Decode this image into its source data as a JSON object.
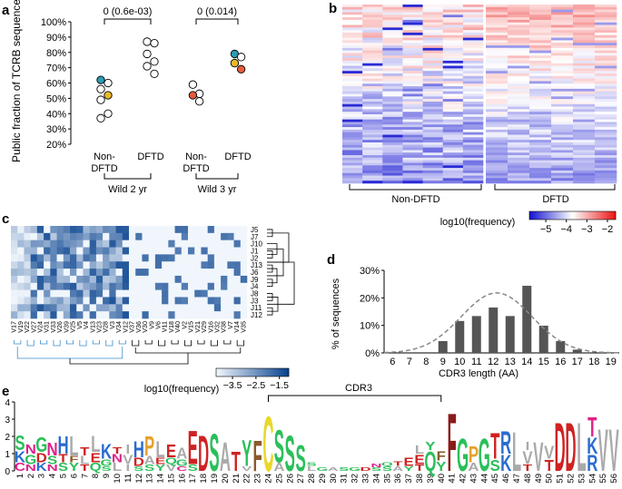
{
  "panels": {
    "a": "a",
    "b": "b",
    "c": "c",
    "d": "d",
    "e": "e"
  },
  "chart_data": [
    {
      "id": "a",
      "type": "scatter",
      "ylabel": "Public fraction of TCRB sequences",
      "ylim": [
        20,
        100
      ],
      "yticks": [
        "20%",
        "30%",
        "40%",
        "50%",
        "60%",
        "70%",
        "80%",
        "90%",
        "100%"
      ],
      "ytick_values": [
        20,
        30,
        40,
        50,
        60,
        70,
        80,
        90,
        100
      ],
      "groups": [
        {
          "label_line1": "Non-",
          "label_line2": "DFTD",
          "x": 1,
          "points": [
            {
              "y": 62,
              "color": "#2a9db5"
            },
            {
              "y": 60,
              "color": "#ffffff"
            },
            {
              "y": 56,
              "color": "#ffffff"
            },
            {
              "y": 52,
              "color": "#e8b92a"
            },
            {
              "y": 49,
              "color": "#ffffff"
            },
            {
              "y": 40,
              "color": "#ffffff"
            },
            {
              "y": 37,
              "color": "#ffffff"
            }
          ]
        },
        {
          "label_line1": "DFTD",
          "label_line2": "",
          "x": 2,
          "points": [
            {
              "y": 87,
              "color": "#ffffff"
            },
            {
              "y": 86,
              "color": "#ffffff"
            },
            {
              "y": 79,
              "color": "#ffffff"
            },
            {
              "y": 74,
              "color": "#ffffff"
            },
            {
              "y": 71,
              "color": "#ffffff"
            },
            {
              "y": 66,
              "color": "#ffffff"
            }
          ]
        },
        {
          "label_line1": "Non-",
          "label_line2": "DFTD",
          "x": 3,
          "points": [
            {
              "y": 59,
              "color": "#ffffff"
            },
            {
              "y": 53,
              "color": "#ffffff"
            },
            {
              "y": 52,
              "color": "#e45c3a"
            },
            {
              "y": 48,
              "color": "#ffffff"
            }
          ]
        },
        {
          "label_line1": "DFTD",
          "label_line2": "",
          "x": 4,
          "points": [
            {
              "y": 79,
              "color": "#2a9db5"
            },
            {
              "y": 77,
              "color": "#ffffff"
            },
            {
              "y": 73,
              "color": "#e8b92a"
            },
            {
              "y": 69,
              "color": "#e45c3a"
            }
          ]
        }
      ],
      "brackets": [
        {
          "from": 1,
          "to": 2,
          "text": "0 (0.6e-03)"
        },
        {
          "from": 3,
          "to": 4,
          "text": "0 (0.014)"
        }
      ],
      "cohorts": [
        {
          "from": 1,
          "to": 2,
          "text": "Wild 2 yr"
        },
        {
          "from": 3,
          "to": 4,
          "text": "Wild 3 yr"
        }
      ]
    },
    {
      "id": "b",
      "type": "heatmap",
      "groups": [
        "Non-DFTD",
        "DFTD"
      ],
      "colorbar_label": "log10(frequency)",
      "colorbar_ticks": [
        "−5",
        "−4",
        "−3",
        "−2"
      ],
      "colorbar_values": [
        -5,
        -4,
        -3,
        -2
      ],
      "colorbar_range": [
        -5.8,
        -1.6
      ],
      "non_dftd_columns": 7,
      "dftd_columns": 6,
      "rows": 70
    },
    {
      "id": "c",
      "type": "heatmap",
      "j_labels": [
        "J5",
        "J7",
        "J10",
        "J1",
        "J2",
        "J13",
        "J6",
        "J9",
        "J4",
        "J8",
        "J3",
        "J11",
        "J12"
      ],
      "v_labels": [
        "V17",
        "V19",
        "V22",
        "V27",
        "V24",
        "V31",
        "V33",
        "V26",
        "V39",
        "V25",
        "V5",
        "V4",
        "V13",
        "V23",
        "V28",
        "V3",
        "V34",
        "V12",
        "V37",
        "V36",
        "V30",
        "V9",
        "V6",
        "V11",
        "V18",
        "V40",
        "V2",
        "V15",
        "V21",
        "V29",
        "V16",
        "V32",
        "V38",
        "V7",
        "V14",
        "V35"
      ],
      "colorbar_label": "log10(frequency)",
      "colorbar_ticks": [
        "−3.5",
        "−2.5",
        "−1.5"
      ],
      "colorbar_values": [
        -3.5,
        -2.5,
        -1.5
      ],
      "colorbar_range": [
        -4.2,
        -1.1
      ]
    },
    {
      "id": "d",
      "type": "bar",
      "categories": [
        "6",
        "7",
        "8",
        "9",
        "10",
        "11",
        "12",
        "13",
        "14",
        "15",
        "16",
        "17",
        "18",
        "19"
      ],
      "values": [
        0,
        0,
        0,
        4.3,
        11.6,
        13.4,
        16.5,
        13.4,
        24.4,
        9.9,
        4.3,
        1.2,
        0,
        0
      ],
      "fit_line": "normal",
      "fit_mean": 12.2,
      "fit_sd": 2.1,
      "fit_peak": 21.8,
      "xlabel": "CDR3 length (AA)",
      "ylabel": "% of sequences",
      "ylim": [
        0,
        30
      ],
      "yticks": [
        "0%",
        "10%",
        "20%",
        "30%"
      ],
      "ytick_values": [
        0,
        10,
        20,
        30
      ]
    },
    {
      "id": "e",
      "type": "other",
      "subtype": "sequence logo",
      "cdr3_label": "CDR3",
      "cdr3_range": [
        24,
        40
      ],
      "yticks": [
        "0",
        "1",
        "2",
        "3",
        "4"
      ],
      "ytick_values": [
        0,
        1,
        2,
        3,
        4
      ],
      "ylim": [
        0,
        4
      ],
      "positions": [
        "1",
        "2",
        "3",
        "4",
        "5",
        "6",
        "7",
        "8",
        "9",
        "10",
        "11",
        "12",
        "13",
        "14",
        "15",
        "16",
        "17",
        "18",
        "19",
        "20",
        "21",
        "22",
        "23",
        "24",
        "25",
        "26",
        "27",
        "28",
        "29",
        "30",
        "31",
        "32",
        "33",
        "34",
        "35",
        "36",
        "37",
        "38",
        "39",
        "40",
        "41",
        "42",
        "43",
        "44",
        "45",
        "46",
        "47",
        "48",
        "49",
        "50",
        "51",
        "52",
        "53",
        "54",
        "55",
        "56"
      ],
      "stacks": [
        [
          [
            "C",
            0.5,
            "#e0218a"
          ],
          [
            "K",
            0.7,
            "#2a6ccf"
          ],
          [
            "S",
            0.9,
            "#2bbf5a"
          ]
        ],
        [
          [
            "N",
            0.4,
            "#e0218a"
          ],
          [
            "G",
            0.6,
            "#2bbf5a"
          ],
          [
            "N",
            0.6,
            "#e0218a"
          ]
        ],
        [
          [
            "K",
            0.5,
            "#2a6ccf"
          ],
          [
            "D",
            0.6,
            "#cf2222"
          ],
          [
            "G",
            0.9,
            "#2bbf5a"
          ]
        ],
        [
          [
            "N",
            0.4,
            "#e0218a"
          ],
          [
            "S",
            0.5,
            "#2bbf5a"
          ],
          [
            "N",
            0.8,
            "#e0218a"
          ]
        ],
        [
          [
            "S",
            0.5,
            "#2bbf5a"
          ],
          [
            "T",
            0.5,
            "#cf2222"
          ],
          [
            "H",
            1.1,
            "#2a6ccf"
          ]
        ],
        [
          [
            "Y",
            0.5,
            "#2bbf5a"
          ],
          [
            "F",
            0.4,
            "#8a5a2a"
          ],
          [
            "L",
            1.2,
            "#aaaaaa"
          ]
        ],
        [
          [
            "T",
            0.4,
            "#cf2222"
          ],
          [
            "L",
            0.5,
            "#aaaaaa"
          ],
          [
            "T",
            0.5,
            "#cf2222"
          ]
        ],
        [
          [
            "Q",
            0.5,
            "#2bbf5a"
          ],
          [
            "E",
            0.6,
            "#cf2222"
          ],
          [
            "L",
            1.0,
            "#aaaaaa"
          ]
        ],
        [
          [
            "S",
            0.3,
            "#2bbf5a"
          ],
          [
            "G",
            0.4,
            "#2bbf5a"
          ],
          [
            "K",
            0.9,
            "#2a6ccf"
          ]
        ],
        [
          [
            "L",
            0.5,
            "#aaaaaa"
          ],
          [
            "N",
            0.5,
            "#e0218a"
          ],
          [
            "T",
            0.4,
            "#cf2222"
          ]
        ],
        [
          [
            "I",
            0.4,
            "#aaaaaa"
          ],
          [
            "V",
            0.6,
            "#aaaaaa"
          ],
          [
            "I",
            0.6,
            "#aaaaaa"
          ]
        ],
        [
          [
            "S",
            0.3,
            "#2bbf5a"
          ],
          [
            "D",
            0.5,
            "#cf2222"
          ],
          [
            "H",
            1.0,
            "#2a6ccf"
          ]
        ],
        [
          [
            "S",
            0.4,
            "#2bbf5a"
          ],
          [
            "A",
            0.5,
            "#aaaaaa"
          ],
          [
            "P",
            1.2,
            "#e8a02a"
          ]
        ],
        [
          [
            "Y",
            0.4,
            "#2bbf5a"
          ],
          [
            "E",
            0.4,
            "#cf2222"
          ],
          [
            "L",
            1.0,
            "#aaaaaa"
          ]
        ],
        [
          [
            "V",
            0.4,
            "#aaaaaa"
          ],
          [
            "Q",
            0.4,
            "#2bbf5a"
          ],
          [
            "E",
            0.8,
            "#cf2222"
          ]
        ],
        [
          [
            "C",
            0.3,
            "#e0218a"
          ],
          [
            "G",
            0.4,
            "#2bbf5a"
          ],
          [
            "A",
            0.7,
            "#aaaaaa"
          ]
        ],
        [
          [
            "S",
            0.4,
            "#2bbf5a"
          ],
          [
            "E",
            2.1,
            "#cf2222"
          ]
        ],
        [
          [
            "D",
            2.2,
            "#cf2222"
          ]
        ],
        [
          [
            "S",
            2.3,
            "#2bbf5a"
          ]
        ],
        [
          [
            "A",
            1.8,
            "#aaaaaa"
          ]
        ],
        [
          [
            "T",
            1.2,
            "#cf2222"
          ]
        ],
        [
          [
            "V",
            0.3,
            "#aaaaaa"
          ],
          [
            "Y",
            1.6,
            "#2bbf5a"
          ]
        ],
        [
          [
            "F",
            1.9,
            "#8a5a2a"
          ]
        ],
        [
          [
            "C",
            3.4,
            "#e8d82a"
          ]
        ],
        [
          [
            "A",
            0.5,
            "#aaaaaa"
          ],
          [
            "S",
            2.0,
            "#2bbf5a"
          ]
        ],
        [
          [
            "S",
            2.2,
            "#2bbf5a"
          ]
        ],
        [
          [
            "S",
            1.6,
            "#2bbf5a"
          ]
        ],
        [
          [
            "L",
            0.3,
            "#aaaaaa"
          ],
          [
            "S",
            0.2,
            "#2bbf5a"
          ]
        ],
        [
          [
            "G",
            0.2,
            "#2bbf5a"
          ]
        ],
        [
          [
            "A",
            0.2,
            "#aaaaaa"
          ]
        ],
        [
          [
            "S",
            0.2,
            "#2bbf5a"
          ]
        ],
        [
          [
            "G",
            0.2,
            "#2bbf5a"
          ]
        ],
        [
          [
            "D",
            0.2,
            "#cf2222"
          ]
        ],
        [
          [
            "S",
            0.2,
            "#2bbf5a"
          ],
          [
            "N",
            0.2,
            "#e0218a"
          ]
        ],
        [
          [
            "S",
            0.3,
            "#2bbf5a"
          ],
          [
            "Q",
            0.2,
            "#2bbf5a"
          ]
        ],
        [
          [
            "A",
            0.3,
            "#aaaaaa"
          ],
          [
            "T",
            0.3,
            "#cf2222"
          ]
        ],
        [
          [
            "Y",
            0.3,
            "#2bbf5a"
          ],
          [
            "E",
            0.5,
            "#cf2222"
          ]
        ],
        [
          [
            "T",
            0.4,
            "#cf2222"
          ],
          [
            "E",
            0.6,
            "#cf2222"
          ],
          [
            "L",
            0.5,
            "#aaaaaa"
          ]
        ],
        [
          [
            "Q",
            1.2,
            "#2bbf5a"
          ],
          [
            "Y",
            0.5,
            "#2bbf5a"
          ]
        ],
        [
          [
            "Y",
            0.6,
            "#2bbf5a"
          ],
          [
            "F",
            0.6,
            "#8a5a2a"
          ]
        ],
        [
          [
            "F",
            3.6,
            "#8a1a1a"
          ]
        ],
        [
          [
            "G",
            2.0,
            "#2bbf5a"
          ]
        ],
        [
          [
            "A",
            0.5,
            "#aaaaaa"
          ],
          [
            "P",
            1.0,
            "#e8a02a"
          ]
        ],
        [
          [
            "G",
            2.0,
            "#2bbf5a"
          ]
        ],
        [
          [
            "S",
            0.7,
            "#2bbf5a"
          ],
          [
            "T",
            1.6,
            "#cf2222"
          ]
        ],
        [
          [
            "K",
            1.0,
            "#2a6ccf"
          ],
          [
            "R",
            1.4,
            "#2a6ccf"
          ]
        ],
        [
          [
            "L",
            2.4,
            "#aaaaaa"
          ]
        ],
        [
          [
            "T",
            0.4,
            "#cf2222"
          ],
          [
            "V",
            0.8,
            "#aaaaaa"
          ],
          [
            "I",
            0.5,
            "#aaaaaa"
          ]
        ],
        [
          [
            "V",
            1.8,
            "#aaaaaa"
          ]
        ],
        [
          [
            "T",
            0.7,
            "#cf2222"
          ],
          [
            "V",
            0.8,
            "#aaaaaa"
          ]
        ],
        [
          [
            "D",
            3.0,
            "#cf2222"
          ]
        ],
        [
          [
            "D",
            3.0,
            "#cf2222"
          ]
        ],
        [
          [
            "L",
            3.0,
            "#aaaaaa"
          ]
        ],
        [
          [
            "R",
            1.0,
            "#2a6ccf"
          ],
          [
            "K",
            1.0,
            "#2a6ccf"
          ],
          [
            "T",
            1.2,
            "#e0218a"
          ]
        ],
        [
          [
            "V",
            2.6,
            "#aaaaaa"
          ]
        ],
        [
          [
            "V",
            2.6,
            "#aaaaaa"
          ]
        ]
      ]
    }
  ]
}
